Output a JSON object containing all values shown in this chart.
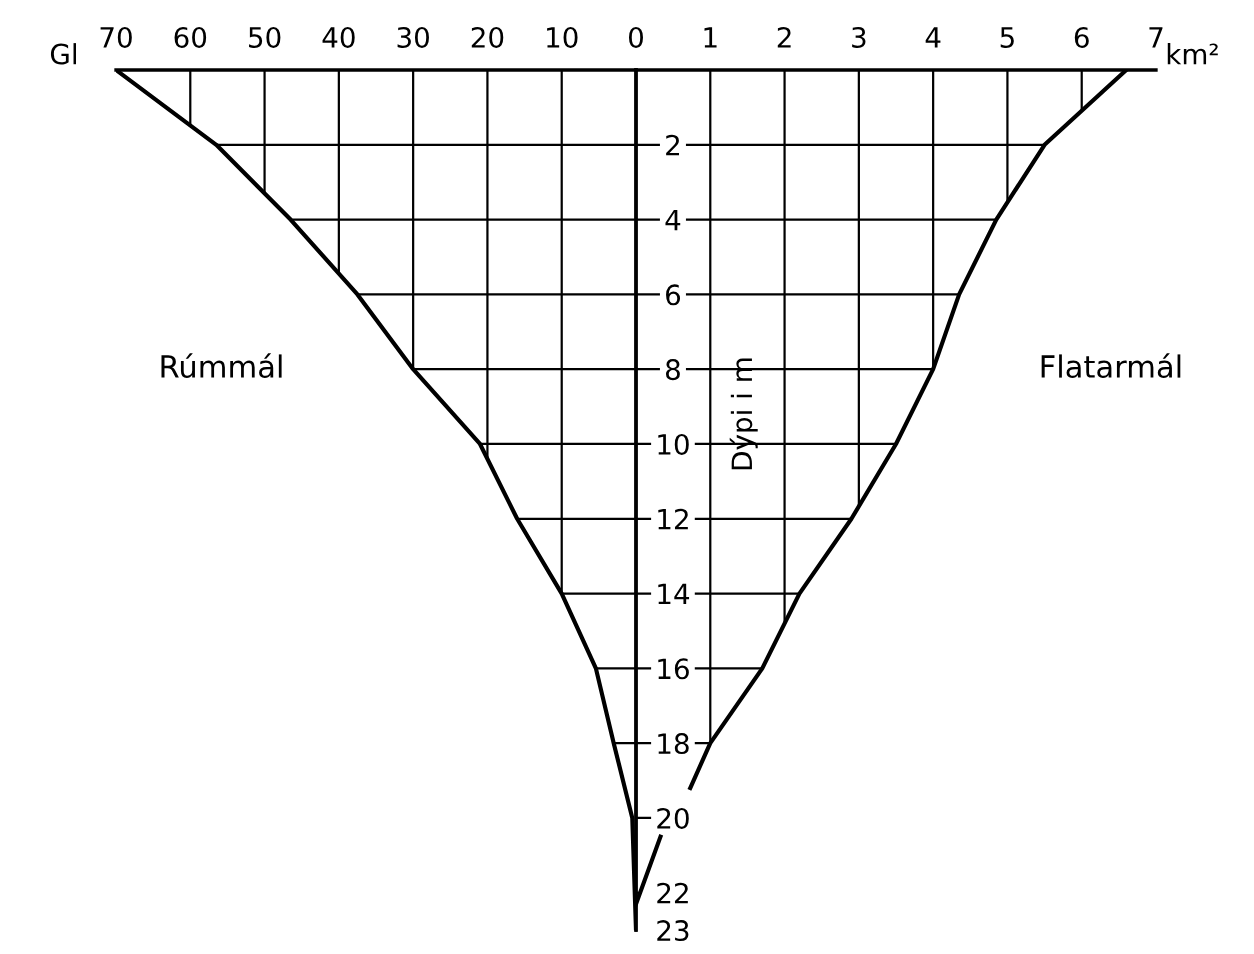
{
  "chart_data": [
    {
      "type": "line",
      "orientation": "horizontal",
      "xlabel": "Gl",
      "x": [
        0,
        2,
        4,
        6,
        8,
        10,
        12,
        14,
        16,
        18,
        20,
        23
      ],
      "series": [
        {
          "name": "Rúmmál",
          "color": "#000000",
          "values": [
            70,
            56.5,
            46.5,
            37.5,
            30,
            21,
            16,
            10,
            5.4,
            3,
            0.5,
            0
          ]
        }
      ],
      "xlim": [
        70,
        0
      ],
      "xticks": [
        70,
        60,
        50,
        40,
        30,
        20,
        10,
        0
      ],
      "ylim": [
        23,
        0
      ],
      "yticks": [
        {
          "value": 2,
          "label": null
        },
        {
          "value": 4,
          "label": null
        },
        {
          "value": 6,
          "label": null
        },
        {
          "value": 8,
          "label": null
        },
        {
          "value": 10,
          "label": null
        },
        {
          "value": 12,
          "label": null
        },
        {
          "value": 14,
          "label": null
        },
        {
          "value": 16,
          "label": null
        },
        {
          "value": 18,
          "label": null
        }
      ],
      "tick_labels": "x",
      "grid": true
    },
    {
      "type": "line",
      "orientation": "horizontal",
      "xlabel": "km²",
      "ylabel": "Dýpi i m",
      "x": [
        0,
        2,
        4,
        6,
        8,
        10,
        12,
        14,
        16,
        18,
        19.2,
        20,
        20.5,
        22.3
      ],
      "series": [
        {
          "name": "Flatarmál",
          "color": "#000000",
          "values": [
            6.6,
            5.5,
            4.85,
            4.35,
            4.0,
            3.5,
            2.9,
            2.2,
            1.7,
            1.0,
            0.73,
            null,
            0.33,
            0
          ]
        }
      ],
      "xlim": [
        0,
        7
      ],
      "xticks": [
        {
          "value": 0,
          "label": null
        },
        1,
        2,
        3,
        4,
        5,
        6,
        7
      ],
      "ylim": [
        23,
        0
      ],
      "yticks": [
        2,
        4,
        6,
        8,
        10,
        12,
        14,
        16,
        18,
        20,
        22,
        23
      ],
      "grid": true
    }
  ]
}
